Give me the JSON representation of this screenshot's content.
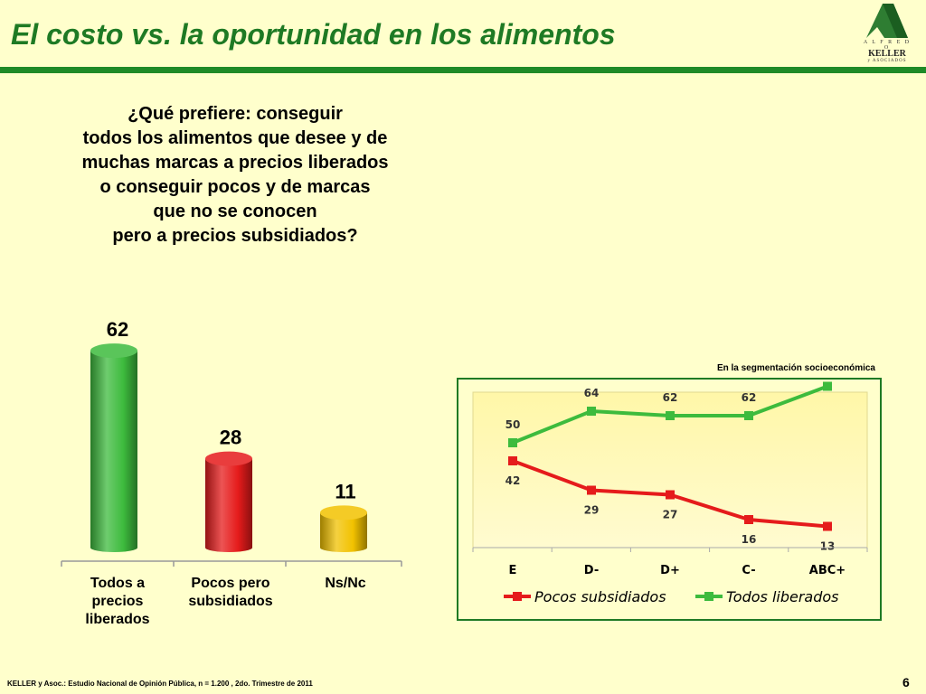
{
  "slide": {
    "title": "El costo vs. la oportunidad en los alimentos",
    "question_lines": [
      "¿Qué prefiere: conseguir",
      "todos los alimentos que desee y de",
      "muchas marcas a precios liberados",
      "o conseguir pocos y de marcas",
      "que no se conocen",
      "pero a precios subsidiados?"
    ],
    "footer": "KELLER y Asoc.: Estudio Nacional de Opinión Pública, n = 1.200 , 2do. Trimestre de 2011",
    "page_number": "6"
  },
  "logo": {
    "top_text": "A L F R E D O",
    "name": "KELLER",
    "bottom_text": "y ASOCIADOS",
    "icon": "keller-mountain-logo",
    "color": "#2e7d32"
  },
  "line_caption": "En la segmentación socioeconómica",
  "colors": {
    "title": "#1e7a24",
    "rule": "#1f8a27",
    "background": "#ffffcc",
    "plot_background": "#fff8a0",
    "green_series": "#3dbb3d",
    "red_series": "#e51b1b",
    "yellow_bar": "#f2c200"
  },
  "chart_data": [
    {
      "type": "bar",
      "categories": [
        [
          "Todos a",
          "precios",
          "liberados"
        ],
        [
          "Pocos pero",
          "subsidiados"
        ],
        [
          "Ns/Nc"
        ]
      ],
      "values": [
        62,
        28,
        11
      ],
      "bar_colors": [
        "#3dbb3d",
        "#e51b1b",
        "#f2c200"
      ],
      "ylim": [
        0,
        70
      ],
      "data_labels": true,
      "grid": false
    },
    {
      "type": "line",
      "categories": [
        "E",
        "D-",
        "D+",
        "C-",
        "ABC+"
      ],
      "series": [
        {
          "name": "Todos liberados",
          "values": [
            50,
            64,
            62,
            62,
            75
          ],
          "color": "#3dbb3d",
          "label_position": "above"
        },
        {
          "name": "Pocos subsidiados",
          "values": [
            42,
            29,
            27,
            16,
            13
          ],
          "color": "#e51b1b",
          "label_position": "below"
        }
      ],
      "legend_order": [
        "Pocos subsidiados",
        "Todos liberados"
      ],
      "legend_placement": "bottom",
      "ylim": [
        0,
        80
      ],
      "grid": false,
      "data_labels": true
    }
  ]
}
